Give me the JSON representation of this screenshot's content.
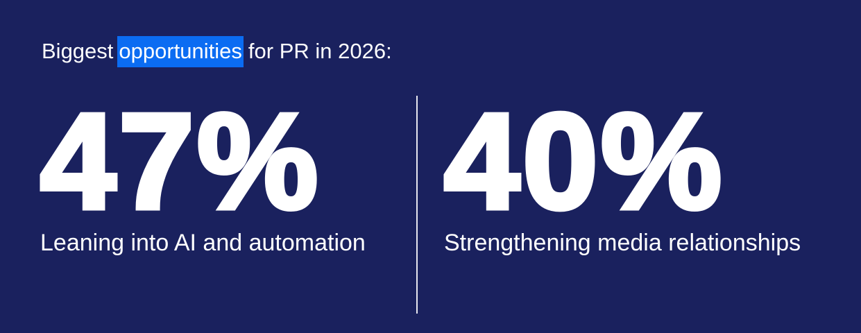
{
  "header": {
    "title": [
      "Biggest",
      "opportunities",
      "for PR in 2026:"
    ]
  },
  "stats": [
    {
      "value": "47%",
      "label": "Leaning into AI and automation"
    },
    {
      "value": "40%",
      "label": "Strengthening media relationships"
    }
  ]
}
